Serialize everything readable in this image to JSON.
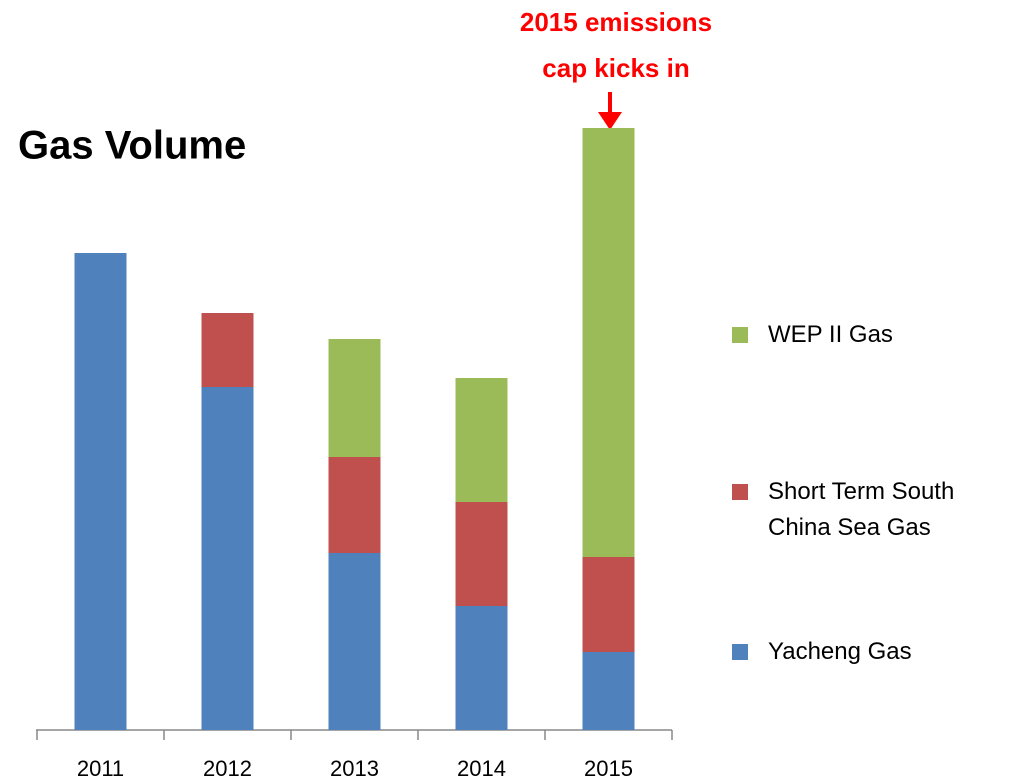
{
  "chart_data": {
    "type": "stacked_bar",
    "title": "Gas Volume",
    "annotation": [
      "2015 emissions",
      "cap  kicks in"
    ],
    "annotation_color": "#ff0000",
    "categories": [
      "2011",
      "2012",
      "2013",
      "2014",
      "2015"
    ],
    "series": [
      {
        "name": "Yacheng Gas",
        "color": "#4f81bd",
        "values": [
          47.7,
          34.3,
          17.7,
          12.4,
          7.8
        ]
      },
      {
        "name": "Short Term South China Sea Gas",
        "color": "#c0504d",
        "values": [
          0,
          7.4,
          9.6,
          10.4,
          9.5
        ]
      },
      {
        "name": "WEP II Gas",
        "color": "#9bbb59",
        "values": [
          0,
          0,
          11.8,
          12.4,
          42.9
        ]
      }
    ],
    "ylim": [
      0,
      62
    ],
    "legend": "right"
  }
}
